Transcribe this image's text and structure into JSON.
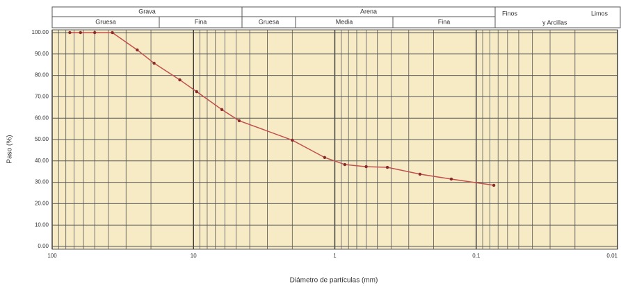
{
  "chart_data": {
    "type": "line",
    "x_label": "Diámetro de partículas (mm)",
    "y_label": "Paso (%)",
    "x": [
      75,
      63,
      50,
      37.5,
      25,
      19,
      12.5,
      9.5,
      6.3,
      4.75,
      2,
      1.18,
      0.85,
      0.6,
      0.425,
      0.25,
      0.15,
      0.075
    ],
    "series": [
      {
        "color": "#c0504d",
        "marker_color": "#8b2a2a",
        "values": [
          100,
          100,
          100,
          100,
          91.9,
          85.7,
          77.9,
          72.4,
          64,
          58.8,
          49.7,
          41.6,
          38.3,
          37.3,
          37,
          33.8,
          31.5,
          28.6
        ]
      }
    ],
    "xscale": "log",
    "xlim": [
      100,
      0.01
    ],
    "xticks": [
      100,
      10,
      1,
      {
        "value": 0.1,
        "label": "0,1"
      },
      {
        "value": 0.01,
        "label": "0,01"
      }
    ],
    "ylim": [
      0,
      100
    ],
    "yticks": [
      {
        "value": 0,
        "label": "0.00"
      },
      {
        "value": 10,
        "label": "10.00"
      },
      {
        "value": 20,
        "label": "20.00"
      },
      {
        "value": 30,
        "label": "30.00"
      },
      {
        "value": 40,
        "label": "40.00"
      },
      {
        "value": 50,
        "label": "50.00"
      },
      {
        "value": 60,
        "label": "60.00"
      },
      {
        "value": 70,
        "label": "70.00"
      },
      {
        "value": 80,
        "label": "80.00"
      },
      {
        "value": 90,
        "label": "90.00"
      },
      {
        "value": 100,
        "label": "100.00"
      }
    ],
    "grid": true,
    "minor_grid": true,
    "background": "#f7ebc6",
    "classification": {
      "groups": [
        {
          "label": "Grava",
          "subs": [
            "Gruesa",
            "Fina"
          ]
        },
        {
          "label": "Arena",
          "subs": [
            "Gruesa",
            "Media",
            "Fina"
          ]
        }
      ],
      "finos": [
        "Finos",
        "Limos",
        "y Arcillas"
      ]
    }
  }
}
